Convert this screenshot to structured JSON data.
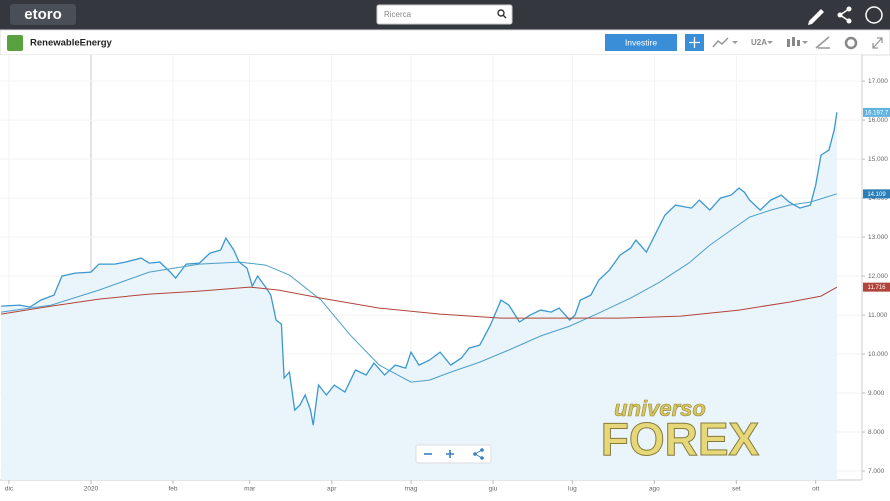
{
  "header": {
    "logo": "etoro",
    "search_placeholder": "Ricerca"
  },
  "toolbar": {
    "instrument": "RenewableEnergy",
    "invest_button": "Investire",
    "period": "U2A"
  },
  "watermark": [
    "universo",
    "FOREX"
  ],
  "chart_data": {
    "type": "line",
    "grid": true,
    "xlim": [
      -3.4,
      322.5
    ],
    "ylim": [
      6770,
      17670
    ],
    "xticks": [
      {
        "value": 0,
        "label": "dic"
      },
      {
        "value": 31,
        "label": "2020"
      },
      {
        "value": 62,
        "label": "feb"
      },
      {
        "value": 91,
        "label": "mar"
      },
      {
        "value": 122,
        "label": "apr"
      },
      {
        "value": 152,
        "label": "mag"
      },
      {
        "value": 183,
        "label": "giu"
      },
      {
        "value": 213,
        "label": "lug"
      },
      {
        "value": 244,
        "label": "ago"
      },
      {
        "value": 275,
        "label": "set"
      },
      {
        "value": 305,
        "label": "ott"
      }
    ],
    "yticks": [
      {
        "value": 7000,
        "label": "7.000"
      },
      {
        "value": 8000,
        "label": "8.000"
      },
      {
        "value": 9000,
        "label": "9.000"
      },
      {
        "value": 10000,
        "label": "10.000"
      },
      {
        "value": 11000,
        "label": "11.000"
      },
      {
        "value": 12000,
        "label": "12.000"
      },
      {
        "value": 13000,
        "label": "13.000"
      },
      {
        "value": 14000,
        "label": "14.000"
      },
      {
        "value": 15000,
        "label": "15.000"
      },
      {
        "value": 16000,
        "label": "16.000"
      },
      {
        "value": 17000,
        "label": "17.000"
      }
    ],
    "series": [
      {
        "color": "#3b98cf",
        "fill_color": "#eaf4fb",
        "label_color": "#5fb3e0",
        "x": [
          -3,
          4,
          8,
          12,
          17,
          20,
          25,
          31,
          34,
          40,
          44,
          50,
          53,
          57,
          61,
          63,
          67,
          72,
          76,
          80,
          82,
          85,
          87,
          90,
          92,
          94,
          97,
          99,
          101,
          103,
          104,
          106,
          108,
          110,
          112,
          114,
          115,
          117,
          120,
          123,
          127,
          131,
          135,
          138,
          142,
          146,
          150,
          152,
          155,
          159,
          163,
          167,
          171,
          174,
          178,
          182,
          186,
          189,
          193,
          197,
          201,
          205,
          208,
          212,
          214,
          216,
          220,
          223,
          227,
          231,
          235,
          237,
          241,
          244,
          248,
          252,
          258,
          261,
          265,
          269,
          273,
          276,
          278,
          280,
          284,
          288,
          292,
          295,
          299,
          303,
          305,
          307,
          310,
          312,
          313
        ],
        "values": [
          11231,
          11256,
          11205,
          11385,
          11513,
          12000,
          12077,
          12103,
          12308,
          12308,
          12359,
          12462,
          12333,
          12359,
          12103,
          11949,
          12308,
          12333,
          12590,
          12667,
          12974,
          12667,
          12359,
          12205,
          11744,
          12000,
          11718,
          11513,
          10872,
          10769,
          9385,
          9538,
          8564,
          8692,
          8949,
          8564,
          8179,
          9205,
          8949,
          9205,
          9026,
          9590,
          9462,
          9769,
          9462,
          9718,
          9641,
          10051,
          9718,
          9846,
          10051,
          9718,
          9897,
          10154,
          10231,
          10744,
          11385,
          11256,
          10821,
          11000,
          11128,
          11077,
          11179,
          10872,
          11000,
          11385,
          11513,
          11897,
          12154,
          12538,
          12718,
          12923,
          12615,
          13026,
          13564,
          13821,
          13744,
          13949,
          13692,
          14000,
          14077,
          14256,
          14154,
          13949,
          13692,
          13949,
          14077,
          13897,
          13744,
          13821,
          14333,
          15103,
          15231,
          15744,
          16197.7
        ],
        "value_labels": [
          null,
          null,
          null,
          null,
          null,
          null,
          null,
          null,
          null,
          null,
          null,
          null,
          null,
          null,
          null,
          null,
          null,
          null,
          null,
          null,
          null,
          null,
          null,
          null,
          null,
          null,
          null,
          null,
          null,
          null,
          null,
          null,
          null,
          null,
          null,
          null,
          null,
          null,
          null,
          null,
          null,
          null,
          null,
          null,
          null,
          null,
          null,
          null,
          null,
          null,
          null,
          null,
          null,
          null,
          null,
          null,
          null,
          null,
          null,
          null,
          null,
          null,
          null,
          null,
          null,
          null,
          null,
          null,
          null,
          null,
          null,
          null,
          null,
          null,
          null,
          null,
          null,
          null,
          null,
          null,
          null,
          null,
          null,
          null,
          null,
          null,
          null,
          null,
          null,
          null,
          null,
          null,
          null,
          null,
          "16.197,7"
        ]
      },
      {
        "color": "#4d9fc8",
        "label_color": "#2b7fb8",
        "x": [
          -3,
          16,
          34,
          53,
          72,
          87,
          97,
          106,
          118,
          129,
          140,
          152,
          159,
          167,
          178,
          189,
          201,
          212,
          223,
          235,
          246,
          257,
          265,
          273,
          280,
          288,
          295,
          303,
          309,
          313
        ],
        "values": [
          11077,
          11256,
          11641,
          12103,
          12308,
          12359,
          12282,
          12026,
          11385,
          10487,
          9718,
          9282,
          9333,
          9538,
          9795,
          10103,
          10462,
          10718,
          11051,
          11436,
          11846,
          12333,
          12795,
          13179,
          13513,
          13692,
          13821,
          13897,
          14026,
          14109
        ],
        "value_labels": [
          null,
          null,
          null,
          null,
          null,
          null,
          null,
          null,
          null,
          null,
          null,
          null,
          null,
          null,
          null,
          null,
          null,
          null,
          null,
          null,
          null,
          null,
          null,
          null,
          null,
          null,
          null,
          null,
          null,
          "14.109"
        ]
      },
      {
        "color": "#b2453b",
        "label_color": "#b2453b",
        "x": [
          -3,
          16,
          34,
          53,
          72,
          91,
          102,
          118,
          140,
          163,
          186,
          208,
          231,
          254,
          276,
          295,
          307,
          313
        ],
        "values": [
          11026,
          11231,
          11410,
          11538,
          11615,
          11718,
          11641,
          11436,
          11179,
          11026,
          10923,
          10923,
          10923,
          10974,
          11128,
          11333,
          11487,
          11716
        ],
        "value_labels": [
          null,
          null,
          null,
          null,
          null,
          null,
          null,
          null,
          null,
          null,
          null,
          null,
          null,
          null,
          null,
          null,
          null,
          "11.716"
        ]
      }
    ]
  }
}
